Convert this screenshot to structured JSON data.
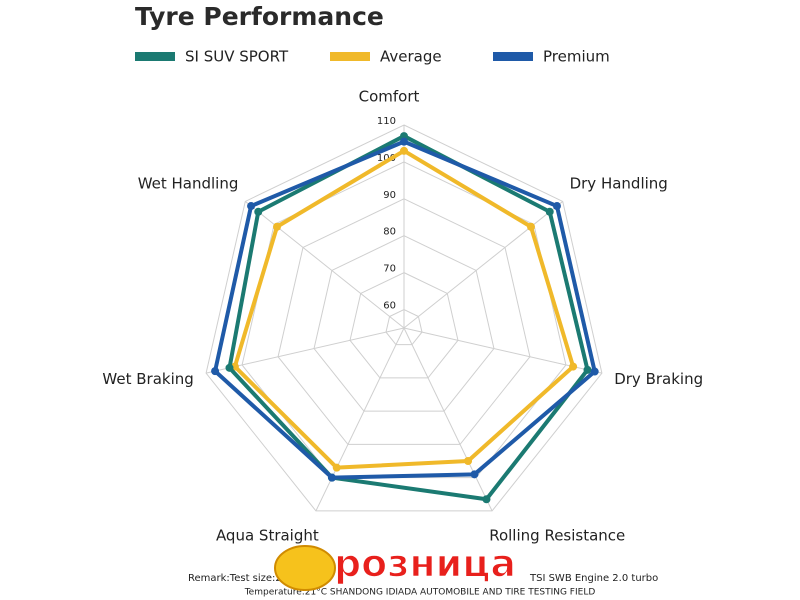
{
  "chart_data": {
    "type": "radar",
    "title": "Tyre Performance",
    "categories": [
      "Comfort",
      "Dry Handling",
      "Dry Braking",
      "Rolling Resistance",
      "Aqua Straight",
      "Wet Braking",
      "Wet Handling"
    ],
    "series": [
      {
        "name": "SI SUV SPORT",
        "color": "#1b7a72",
        "values": [
          107,
          105.5,
          106,
          106.5,
          100,
          103.5,
          105.5
        ]
      },
      {
        "name": "Average",
        "color": "#f0b92a",
        "values": [
          103,
          99,
          102,
          95,
          97,
          102,
          99
        ]
      },
      {
        "name": "Premium",
        "color": "#1f5aa8",
        "values": [
          105.5,
          108,
          108,
          99,
          100,
          107.5,
          108
        ]
      }
    ],
    "rlim": [
      55,
      110
    ],
    "rticks": [
      60,
      70,
      80,
      90,
      100,
      110
    ],
    "grid": true,
    "legend": "top",
    "notes": [
      "Remark:Test size:2",
      "TSI SWB Engine 2.0 turbo",
      "Temperature:21°C SHANDONG IDIADA AUTOMOBILE AND TIRE TESTING FIELD"
    ],
    "watermark": "розница"
  }
}
